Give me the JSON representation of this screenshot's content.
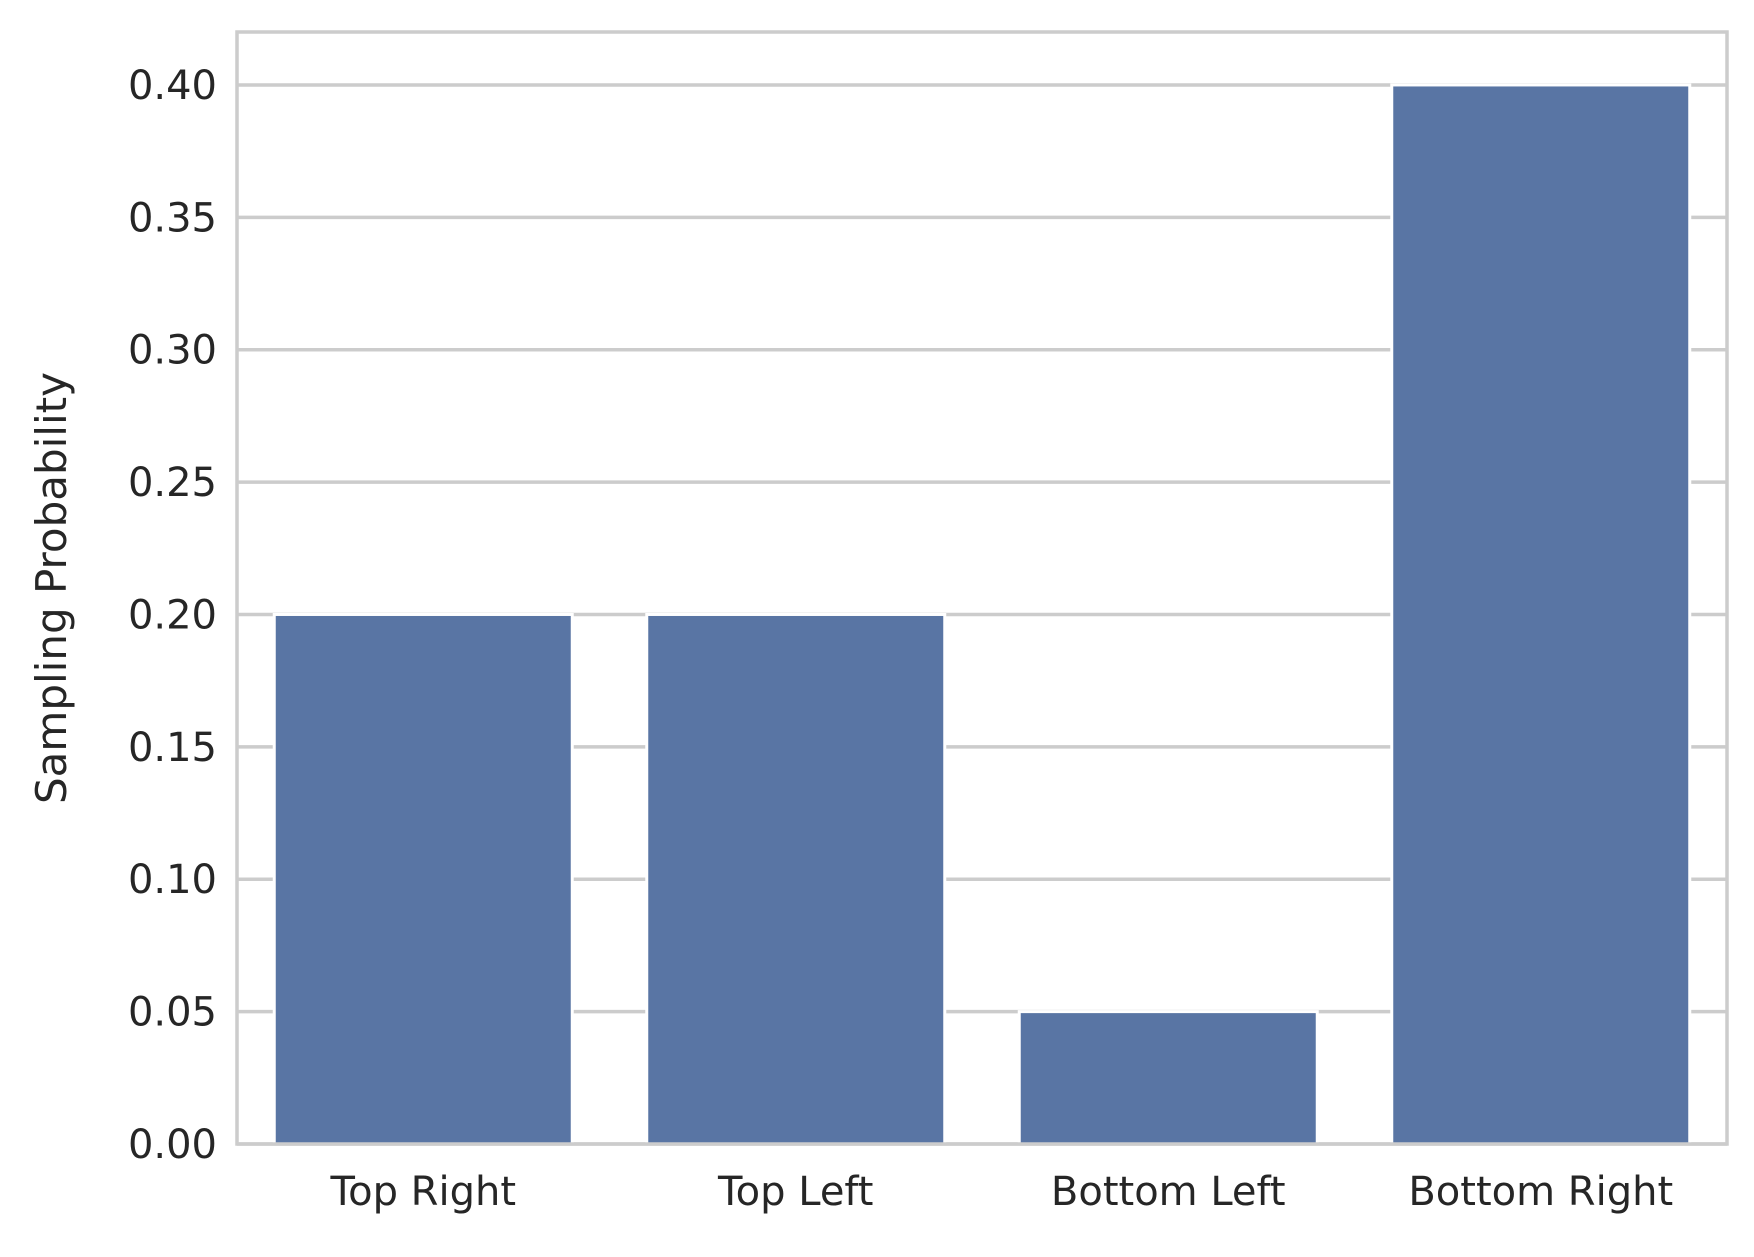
{
  "chart_data": {
    "type": "bar",
    "title": "",
    "xlabel": "",
    "ylabel": "Sampling Probability",
    "categories": [
      "Top Right",
      "Top Left",
      "Bottom Left",
      "Bottom Right"
    ],
    "values": [
      0.2,
      0.2,
      0.05,
      0.4
    ],
    "ylim": [
      0,
      0.42
    ],
    "yticks": [
      0.0,
      0.05,
      0.1,
      0.15,
      0.2,
      0.25,
      0.3,
      0.35,
      0.4
    ],
    "ytick_labels": [
      "0.00",
      "0.05",
      "0.10",
      "0.15",
      "0.20",
      "0.25",
      "0.30",
      "0.35",
      "0.40"
    ],
    "grid": "horizontal",
    "legend": "none",
    "colors": {
      "bar": "#5975a4",
      "grid": "#cccccc",
      "frame": "#cccccc",
      "text": "#262626",
      "background": "#ffffff"
    }
  }
}
